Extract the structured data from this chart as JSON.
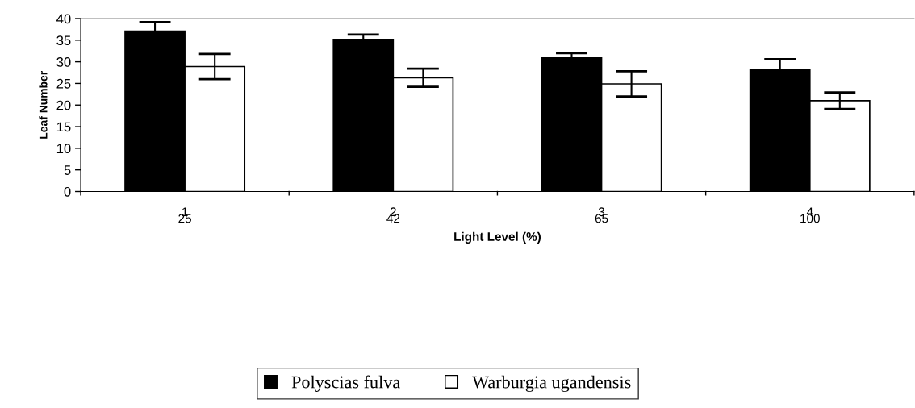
{
  "chart_data": {
    "type": "bar",
    "xlabel": "Light Level (%)",
    "ylabel": "Leaf Number",
    "categories": [
      "1\n25",
      "2\n42",
      "3\n65",
      "4\n100"
    ],
    "series": [
      {
        "name": "Polyscias fulva",
        "color": "#000000",
        "values": [
          37.1,
          35.2,
          30.9,
          28.1
        ],
        "errors": [
          2.1,
          1.1,
          1.1,
          2.5
        ]
      },
      {
        "name": "Warburgia ugandensis",
        "color": "#ffffff",
        "values": [
          28.9,
          26.3,
          24.9,
          21.0
        ],
        "errors": [
          2.9,
          2.1,
          2.9,
          1.9
        ]
      }
    ],
    "ylim": [
      0,
      40
    ],
    "yticks": [
      0,
      5,
      10,
      15,
      20,
      25,
      30,
      35,
      40
    ],
    "grid": false,
    "legend": "bottom"
  }
}
